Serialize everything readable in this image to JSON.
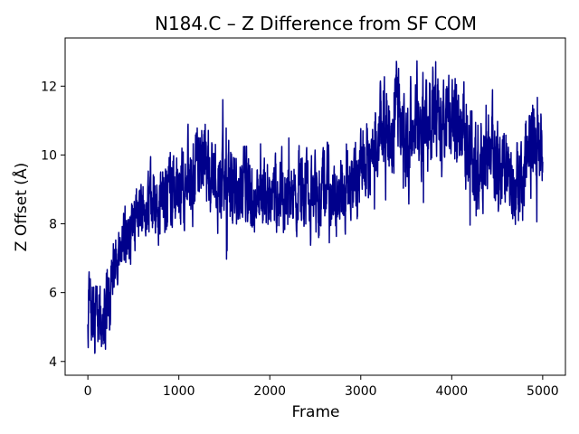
{
  "chart_data": {
    "type": "line",
    "title": "N184.C – Z Difference from SF COM",
    "xlabel": "Frame",
    "ylabel": "Z Offset (Å)",
    "xlim": [
      -250,
      5250
    ],
    "ylim": [
      3.6,
      13.4
    ],
    "xticks": [
      0,
      1000,
      2000,
      3000,
      4000,
      5000
    ],
    "yticks": [
      4,
      6,
      8,
      10,
      12
    ],
    "grid": false,
    "line_color": "#00008b",
    "series": [
      {
        "x": [
          0,
          50,
          100,
          150,
          200,
          250,
          300,
          350,
          400,
          450,
          500,
          550,
          600,
          650,
          700,
          750,
          800,
          850,
          900,
          950,
          1000,
          1050,
          1100,
          1150,
          1200,
          1250,
          1300,
          1350,
          1400,
          1450,
          1500,
          1550,
          1600,
          1650,
          1700,
          1750,
          1800,
          1850,
          1900,
          1950,
          2000,
          2050,
          2100,
          2150,
          2200,
          2250,
          2300,
          2350,
          2400,
          2450,
          2500,
          2550,
          2600,
          2650,
          2700,
          2750,
          2800,
          2850,
          2900,
          2950,
          3000,
          3050,
          3100,
          3150,
          3200,
          3250,
          3300,
          3350,
          3400,
          3450,
          3500,
          3550,
          3600,
          3650,
          3700,
          3750,
          3800,
          3850,
          3900,
          3950,
          4000,
          4050,
          4100,
          4150,
          4200,
          4250,
          4300,
          4350,
          4400,
          4450,
          4500,
          4550,
          4600,
          4650,
          4700,
          4750,
          4800,
          4850,
          4900,
          4950,
          5000
        ],
        "values": [
          5.8,
          5.2,
          5.0,
          5.1,
          5.6,
          6.3,
          7.0,
          7.4,
          7.7,
          7.6,
          8.0,
          8.1,
          8.2,
          8.4,
          8.6,
          8.7,
          8.8,
          8.6,
          8.9,
          9.1,
          9.0,
          9.2,
          9.3,
          9.6,
          9.8,
          10.1,
          9.7,
          9.4,
          9.1,
          9.3,
          9.0,
          8.9,
          9.1,
          8.7,
          9.0,
          9.2,
          8.8,
          8.6,
          8.9,
          8.5,
          8.7,
          8.9,
          8.6,
          8.8,
          9.0,
          8.7,
          8.9,
          9.1,
          8.8,
          8.6,
          8.9,
          8.7,
          8.8,
          9.0,
          8.9,
          9.2,
          8.8,
          8.7,
          9.0,
          9.3,
          9.4,
          9.8,
          10.0,
          10.3,
          10.6,
          10.8,
          10.5,
          11.0,
          11.3,
          10.9,
          10.2,
          10.6,
          11.1,
          10.8,
          11.0,
          10.4,
          11.3,
          11.0,
          10.7,
          11.0,
          10.6,
          10.9,
          10.7,
          10.3,
          9.8,
          9.4,
          9.6,
          9.9,
          10.2,
          10.0,
          9.4,
          9.1,
          9.5,
          9.3,
          9.0,
          8.8,
          9.9,
          10.6,
          10.8,
          10.4,
          10.1
        ],
        "amplitude": [
          0.8,
          0.9,
          0.9,
          0.8,
          0.9,
          0.9,
          0.8,
          0.7,
          0.7,
          0.7,
          0.7,
          0.7,
          0.8,
          0.8,
          0.9,
          0.9,
          0.9,
          0.9,
          0.9,
          0.9,
          0.9,
          0.9,
          1.0,
          1.0,
          1.0,
          1.0,
          1.0,
          1.0,
          1.0,
          1.0,
          1.0,
          1.0,
          1.0,
          0.9,
          0.9,
          0.9,
          0.9,
          0.9,
          0.9,
          0.9,
          0.9,
          0.9,
          0.9,
          0.9,
          0.9,
          0.9,
          0.9,
          0.9,
          0.9,
          0.9,
          0.9,
          0.9,
          0.9,
          0.9,
          0.9,
          0.9,
          0.9,
          0.9,
          0.9,
          0.9,
          0.9,
          1.0,
          1.0,
          1.0,
          1.0,
          1.0,
          1.0,
          1.1,
          1.1,
          1.1,
          1.1,
          1.1,
          1.2,
          1.2,
          1.2,
          1.2,
          1.2,
          1.2,
          1.1,
          1.1,
          1.1,
          1.1,
          1.1,
          1.1,
          1.1,
          1.1,
          1.1,
          1.1,
          1.1,
          1.1,
          1.1,
          1.0,
          1.0,
          1.0,
          1.0,
          1.0,
          1.2,
          1.2,
          1.2,
          1.1,
          0.9
        ]
      }
    ]
  }
}
